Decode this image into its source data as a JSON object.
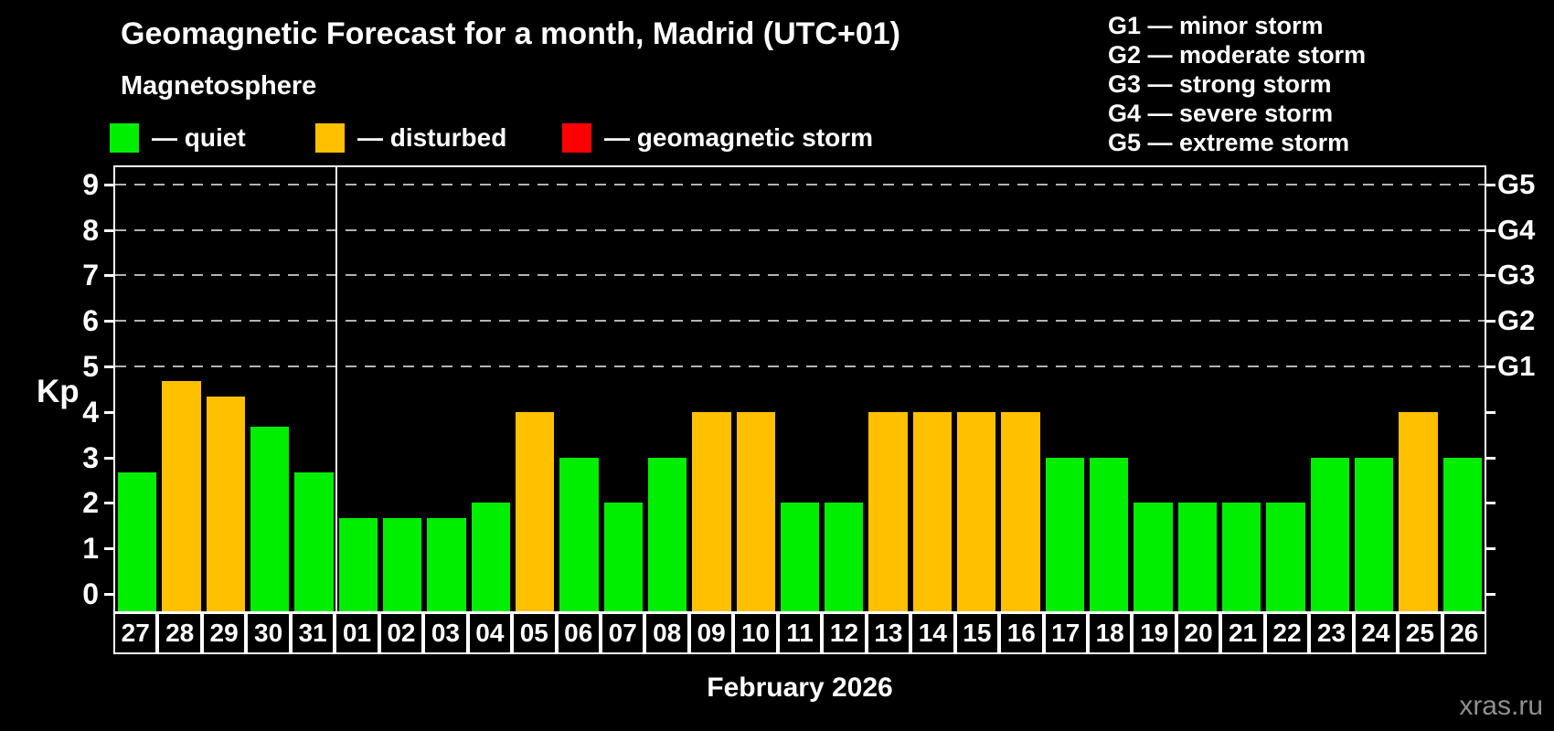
{
  "header": {
    "title": "Geomagnetic Forecast for a month, Madrid (UTC+01)",
    "subtitle": "Magnetosphere"
  },
  "status_legend": [
    {
      "key": "quiet",
      "label": "— quiet",
      "color": "#00ee00"
    },
    {
      "key": "disturbed",
      "label": "— disturbed",
      "color": "#ffc000"
    },
    {
      "key": "storm",
      "label": "— geomagnetic storm",
      "color": "#ff0000"
    }
  ],
  "g_scale_legend": [
    "G1 — minor storm",
    "G2 — moderate storm",
    "G3 — strong storm",
    "G4 — severe storm",
    "G5 — extreme storm"
  ],
  "axes": {
    "y_label": "Kp",
    "y_ticks": [
      0,
      1,
      2,
      3,
      4,
      5,
      6,
      7,
      8,
      9
    ],
    "right_ticks": [
      {
        "kp": 5,
        "label": "G1"
      },
      {
        "kp": 6,
        "label": "G2"
      },
      {
        "kp": 7,
        "label": "G3"
      },
      {
        "kp": 8,
        "label": "G4"
      },
      {
        "kp": 9,
        "label": "G5"
      }
    ],
    "x_label": "February 2026"
  },
  "footer": {
    "watermark": "xras.ru"
  },
  "chart_data": {
    "type": "bar",
    "title": "Geomagnetic Forecast for a month, Madrid (UTC+01)",
    "xlabel": "February 2026",
    "ylabel": "Kp",
    "ylim": [
      0,
      9.4
    ],
    "grid": "horizontal dashed lines at Kp 5,6,7,8,9 (G1..G5)",
    "legend_position": "top",
    "categories": [
      "27",
      "28",
      "29",
      "30",
      "31",
      "01",
      "02",
      "03",
      "04",
      "05",
      "06",
      "07",
      "08",
      "09",
      "10",
      "11",
      "12",
      "13",
      "14",
      "15",
      "16",
      "17",
      "18",
      "19",
      "20",
      "21",
      "22",
      "23",
      "24",
      "25",
      "26"
    ],
    "series": [
      {
        "name": "Kp forecast",
        "values": [
          2.67,
          4.67,
          4.33,
          3.67,
          2.67,
          1.67,
          1.67,
          1.67,
          2,
          4,
          3,
          2,
          3,
          4,
          4,
          2,
          2,
          4,
          4,
          4,
          4,
          3,
          3,
          2,
          2,
          2,
          2,
          3,
          3,
          4,
          3
        ]
      }
    ],
    "point_status": [
      "quiet",
      "disturbed",
      "disturbed",
      "quiet",
      "quiet",
      "quiet",
      "quiet",
      "quiet",
      "quiet",
      "disturbed",
      "quiet",
      "quiet",
      "quiet",
      "disturbed",
      "disturbed",
      "quiet",
      "quiet",
      "disturbed",
      "disturbed",
      "disturbed",
      "disturbed",
      "quiet",
      "quiet",
      "quiet",
      "quiet",
      "quiet",
      "quiet",
      "quiet",
      "quiet",
      "disturbed",
      "quiet"
    ],
    "month_boundary_after_index": 4
  }
}
